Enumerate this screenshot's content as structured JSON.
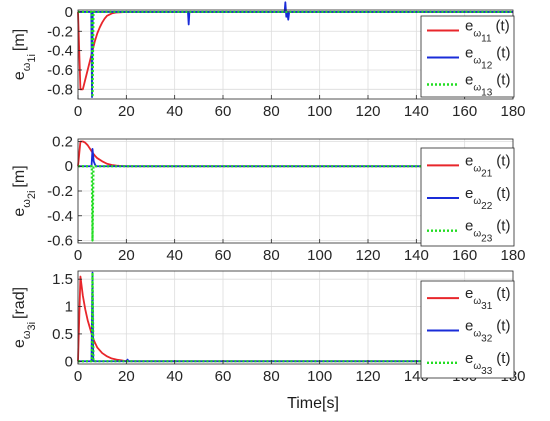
{
  "figure": {
    "xlabel": "Time[s]"
  },
  "chart_data": [
    {
      "type": "line",
      "ylabel_base": "e",
      "ylabel_sub1": "ω",
      "ylabel_sub2": "1i",
      "ylabel_unit": "[m]",
      "xlim": [
        0,
        180
      ],
      "ylim": [
        -0.9,
        0.02
      ],
      "xticks": [
        "0",
        "20",
        "40",
        "60",
        "80",
        "100",
        "120",
        "140",
        "160",
        "180"
      ],
      "yticks": [
        {
          "v": 0,
          "label": "0"
        },
        {
          "v": -0.2,
          "label": "-0.2"
        },
        {
          "v": -0.4,
          "label": "-0.4"
        },
        {
          "v": -0.6,
          "label": "-0.6"
        },
        {
          "v": -0.8,
          "label": "-0.8"
        }
      ],
      "grid": true,
      "legend_position": "right",
      "series": [
        {
          "name": "e_ω11(t)",
          "legend_base": "e",
          "legend_sub1": "ω",
          "legend_sub2": "11",
          "legend_tail": "(t)",
          "color": "#e8262b",
          "style": "solid",
          "x": [
            0,
            1,
            2,
            3,
            4,
            5,
            6,
            7,
            8,
            9,
            10,
            11,
            12,
            14,
            16,
            20,
            180
          ],
          "y": [
            0,
            -0.8,
            -0.8,
            -0.7,
            -0.6,
            -0.5,
            -0.4,
            -0.3,
            -0.22,
            -0.16,
            -0.11,
            -0.07,
            -0.04,
            -0.015,
            -0.005,
            0,
            0
          ]
        },
        {
          "name": "e_ω12(t)",
          "legend_base": "e",
          "legend_sub1": "ω",
          "legend_sub2": "12",
          "legend_tail": "(t)",
          "color": "#1a2cd8",
          "style": "solid",
          "x": [
            0,
            5.5,
            5.8,
            6.1,
            6.4,
            45.5,
            45.8,
            46.1,
            46.4,
            85.5,
            85.8,
            86.2,
            86.6,
            87,
            87.4,
            180
          ],
          "y": [
            0,
            0,
            -0.88,
            0,
            0,
            0,
            -0.13,
            0,
            0,
            0,
            0.1,
            -0.05,
            0,
            -0.08,
            0,
            0
          ]
        },
        {
          "name": "e_ω13(t)",
          "legend_base": "e",
          "legend_sub1": "ω",
          "legend_sub2": "13",
          "legend_tail": "(t)",
          "color": "#22dd22",
          "style": "dotted",
          "x": [
            0,
            5.7,
            6.0,
            6.4,
            180
          ],
          "y": [
            0,
            0,
            -0.88,
            0,
            0
          ]
        }
      ]
    },
    {
      "type": "line",
      "ylabel_base": "e",
      "ylabel_sub1": "ω",
      "ylabel_sub2": "2i",
      "ylabel_unit": "[m]",
      "xlim": [
        0,
        180
      ],
      "ylim": [
        -0.62,
        0.22
      ],
      "xticks": [
        "0",
        "20",
        "40",
        "60",
        "80",
        "100",
        "120",
        "140",
        "160",
        "180"
      ],
      "yticks": [
        {
          "v": 0.2,
          "label": "0.2"
        },
        {
          "v": 0,
          "label": "0"
        },
        {
          "v": -0.2,
          "label": "-0.2"
        },
        {
          "v": -0.4,
          "label": "-0.4"
        },
        {
          "v": -0.6,
          "label": "-0.6"
        }
      ],
      "grid": true,
      "legend_position": "right",
      "series": [
        {
          "name": "e_ω21(t)",
          "legend_base": "e",
          "legend_sub1": "ω",
          "legend_sub2": "21",
          "legend_tail": "(t)",
          "color": "#e8262b",
          "style": "solid",
          "x": [
            0,
            1,
            2,
            3,
            4,
            5,
            6,
            7,
            8,
            10,
            12,
            14,
            16,
            18,
            20,
            180
          ],
          "y": [
            0,
            0.2,
            0.2,
            0.19,
            0.17,
            0.14,
            0.11,
            0.085,
            0.065,
            0.04,
            0.02,
            0.01,
            0.005,
            0.002,
            0,
            0
          ]
        },
        {
          "name": "e_ω22(t)",
          "legend_base": "e",
          "legend_sub1": "ω",
          "legend_sub2": "22",
          "legend_tail": "(t)",
          "color": "#1a2cd8",
          "style": "solid",
          "x": [
            0,
            5.6,
            6.0,
            6.5,
            7,
            7.5,
            180
          ],
          "y": [
            0,
            0,
            0.14,
            0.04,
            0.015,
            0,
            0
          ]
        },
        {
          "name": "e_ω23(t)",
          "legend_base": "e",
          "legend_sub1": "ω",
          "legend_sub2": "23",
          "legend_tail": "(t)",
          "color": "#22dd22",
          "style": "dotted",
          "x": [
            0,
            5.7,
            6.0,
            6.4,
            180
          ],
          "y": [
            0,
            0,
            -0.6,
            0,
            0
          ]
        }
      ]
    },
    {
      "type": "line",
      "ylabel_base": "e",
      "ylabel_sub1": "ω",
      "ylabel_sub2": "3i",
      "ylabel_unit": "[rad]",
      "xlim": [
        0,
        180
      ],
      "ylim": [
        -0.05,
        1.65
      ],
      "xticks": [
        "0",
        "20",
        "40",
        "60",
        "80",
        "100",
        "120",
        "140",
        "160",
        "180"
      ],
      "yticks": [
        {
          "v": 1.5,
          "label": "1.5"
        },
        {
          "v": 1,
          "label": "1"
        },
        {
          "v": 0.5,
          "label": "0.5"
        },
        {
          "v": 0,
          "label": "0"
        }
      ],
      "grid": true,
      "legend_position": "right",
      "series": [
        {
          "name": "e_ω31(t)",
          "legend_base": "e",
          "legend_sub1": "ω",
          "legend_sub2": "31",
          "legend_tail": "(t)",
          "color": "#e8262b",
          "style": "solid",
          "x": [
            0,
            1,
            2,
            3,
            4,
            5,
            6,
            7,
            8,
            10,
            12,
            14,
            16,
            18,
            20,
            180
          ],
          "y": [
            0,
            1.55,
            1.2,
            0.95,
            0.75,
            0.6,
            0.45,
            0.34,
            0.25,
            0.15,
            0.09,
            0.05,
            0.03,
            0.015,
            0,
            0
          ]
        },
        {
          "name": "e_ω32(t)",
          "legend_base": "e",
          "legend_sub1": "ω",
          "legend_sub2": "32",
          "legend_tail": "(t)",
          "color": "#1a2cd8",
          "style": "solid",
          "x": [
            0,
            5.6,
            6.0,
            6.3,
            6.7,
            20,
            20.5,
            21,
            180
          ],
          "y": [
            0,
            0,
            1.62,
            0,
            0,
            0,
            0.03,
            0,
            0
          ]
        },
        {
          "name": "e_ω33(t)",
          "legend_base": "e",
          "legend_sub1": "ω",
          "legend_sub2": "33",
          "legend_tail": "(t)",
          "color": "#22dd22",
          "style": "dotted",
          "x": [
            0,
            5.7,
            6.0,
            6.4,
            180
          ],
          "y": [
            0,
            0,
            1.62,
            0,
            0
          ]
        }
      ]
    }
  ]
}
